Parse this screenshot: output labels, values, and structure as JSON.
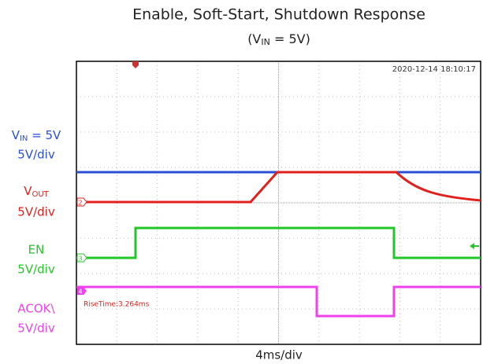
{
  "title": "Enable, Soft-Start, Shutdown Response",
  "subtitle": {
    "prefix": "(V",
    "sub": "IN",
    "suffix": " = 5V)"
  },
  "timestamp": "2020-12-14 18:10:17",
  "measurement": "RiseTime:3.264ms",
  "timebase": "4ms/div",
  "channels": [
    {
      "label": {
        "prefix": "V",
        "sub": "IN",
        "suffix": " = 5V"
      },
      "scale": "5V/div"
    },
    {
      "label": {
        "prefix": "V",
        "sub": "OUT",
        "suffix": ""
      },
      "scale": "5V/div",
      "marker": "2"
    },
    {
      "label": {
        "prefix": "EN",
        "sub": "",
        "suffix": ""
      },
      "scale": "5V/div",
      "marker": "3"
    },
    {
      "label": {
        "prefix": "ACOK\\",
        "sub": "",
        "suffix": ""
      },
      "scale": "5V/div",
      "marker": "4"
    }
  ]
}
